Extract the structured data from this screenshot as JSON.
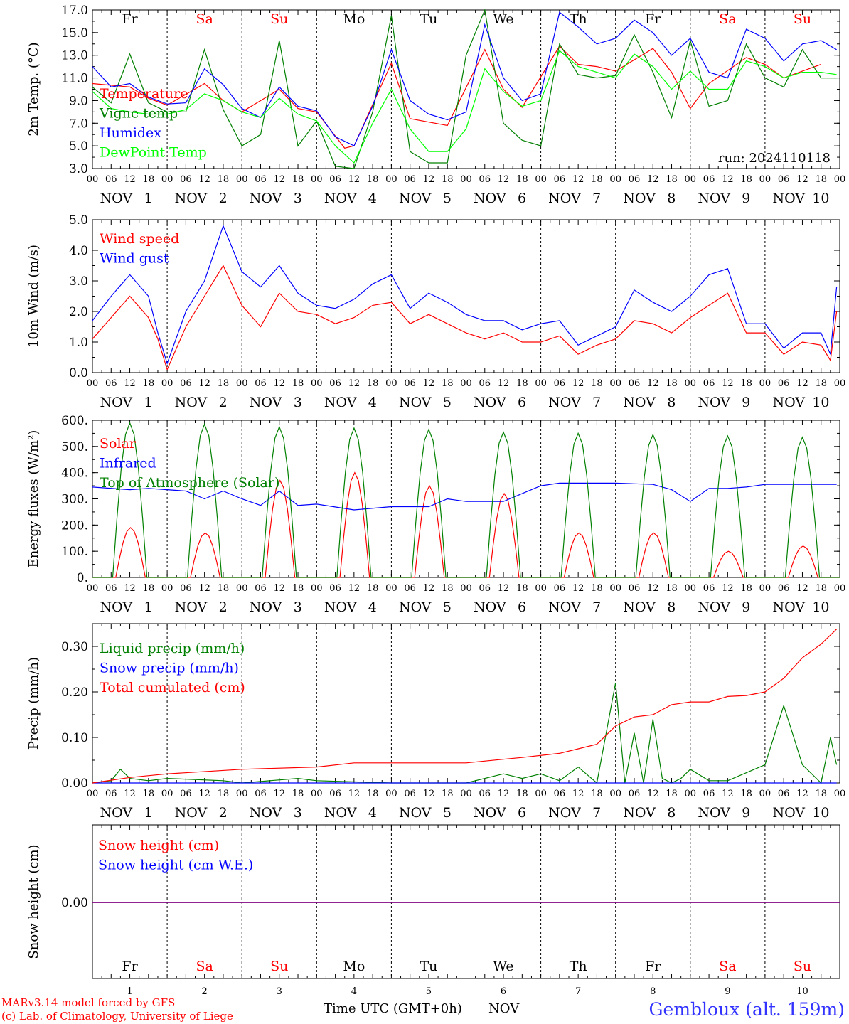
{
  "days": [
    {
      "abbr": "Fr",
      "num": "1",
      "weekend": false
    },
    {
      "abbr": "Sa",
      "num": "2",
      "weekend": true
    },
    {
      "abbr": "Su",
      "num": "3",
      "weekend": true
    },
    {
      "abbr": "Mo",
      "num": "4",
      "weekend": false
    },
    {
      "abbr": "Tu",
      "num": "5",
      "weekend": false
    },
    {
      "abbr": "We",
      "num": "6",
      "weekend": false
    },
    {
      "abbr": "Th",
      "num": "7",
      "weekend": false
    },
    {
      "abbr": "Fr",
      "num": "8",
      "weekend": false
    },
    {
      "abbr": "Sa",
      "num": "9",
      "weekend": true
    },
    {
      "abbr": "Su",
      "num": "10",
      "weekend": true
    }
  ],
  "hour_ticks": [
    "00",
    "06",
    "12",
    "18"
  ],
  "month_label": "NOV",
  "colors": {
    "red": "#ff0000",
    "green": "#008000",
    "blue": "#0000ff",
    "lightgreen": "#00ff00",
    "weekend": "#ff0000",
    "weekday": "#000000",
    "purple": "#800080",
    "station": "#3333ff"
  },
  "chart_data": [
    {
      "id": "temp",
      "type": "line",
      "ylabel": "2m Temp. (°C)",
      "ylim": [
        3,
        17
      ],
      "yticks": [
        "3.0",
        "5.0",
        "7.0",
        "9.0",
        "11.0",
        "13.0",
        "15.0",
        "17.0"
      ],
      "ytick_values": [
        3,
        5,
        7,
        9,
        11,
        13,
        15,
        17
      ],
      "annotation": "run: 2024110118",
      "legend_placement": "upper-left",
      "series": [
        {
          "name": "Temperature",
          "color": "red",
          "x_hours": [
            0,
            12,
            18,
            24,
            36,
            42,
            48,
            60,
            66,
            72,
            81,
            84,
            96,
            102,
            108,
            114,
            126,
            132,
            138,
            150,
            156,
            162,
            168,
            180,
            186,
            192,
            198,
            210,
            216,
            222,
            234
          ],
          "values": [
            10.5,
            10.2,
            9.2,
            8.6,
            10.5,
            9.0,
            8.0,
            10.0,
            8.3,
            8.0,
            4.8,
            5.0,
            12.3,
            7.4,
            7.1,
            6.8,
            13.5,
            10.0,
            8.4,
            13.8,
            12.2,
            12.0,
            11.6,
            13.6,
            11.5,
            8.3,
            10.5,
            12.8,
            12.2,
            11.0,
            12.2
          ]
        },
        {
          "name": "Vigne temp",
          "color": "green",
          "x_hours": [
            0,
            6,
            12,
            18,
            24,
            30,
            36,
            42,
            48,
            54,
            60,
            66,
            72,
            78,
            84,
            90,
            96,
            102,
            108,
            114,
            120,
            126,
            132,
            138,
            144,
            150,
            156,
            162,
            168,
            174,
            180,
            186,
            192,
            198,
            204,
            210,
            216,
            222,
            228,
            234,
            239
          ],
          "values": [
            10.2,
            8.8,
            13.1,
            8.8,
            8.0,
            8.0,
            13.5,
            8.2,
            5.0,
            6.0,
            14.3,
            5.0,
            7.2,
            3.2,
            3.0,
            8.0,
            16.5,
            4.5,
            3.5,
            3.5,
            13.0,
            17.0,
            7.0,
            5.5,
            5.0,
            14.0,
            11.3,
            11.0,
            11.2,
            14.8,
            11.5,
            7.5,
            14.3,
            8.5,
            9.0,
            14.0,
            11.0,
            10.2,
            13.5,
            11.0,
            11.0
          ]
        },
        {
          "name": "Humidex",
          "color": "blue",
          "x_hours": [
            0,
            6,
            12,
            18,
            24,
            30,
            36,
            42,
            48,
            54,
            60,
            66,
            72,
            78,
            84,
            90,
            96,
            102,
            108,
            114,
            120,
            126,
            132,
            138,
            144,
            150,
            156,
            162,
            168,
            174,
            180,
            186,
            192,
            198,
            204,
            210,
            216,
            222,
            228,
            234,
            239
          ],
          "values": [
            12.0,
            10.2,
            10.5,
            9.3,
            8.7,
            8.8,
            11.8,
            10.4,
            8.3,
            7.5,
            10.2,
            8.5,
            8.1,
            5.8,
            5.0,
            8.5,
            13.5,
            9.0,
            7.8,
            7.3,
            8.0,
            15.7,
            11.0,
            9.0,
            9.6,
            16.8,
            15.5,
            14.0,
            14.5,
            16.1,
            15.0,
            13.0,
            14.5,
            11.5,
            11.0,
            15.3,
            14.5,
            12.5,
            14.0,
            14.3,
            13.5
          ]
        },
        {
          "name": "DewPoint Temp",
          "color": "lightgreen",
          "x_hours": [
            0,
            6,
            12,
            18,
            24,
            30,
            36,
            42,
            48,
            54,
            60,
            66,
            72,
            78,
            84,
            90,
            96,
            102,
            108,
            114,
            120,
            126,
            132,
            138,
            144,
            150,
            156,
            162,
            168,
            174,
            180,
            186,
            192,
            198,
            204,
            210,
            216,
            222,
            228,
            234,
            239
          ],
          "values": [
            9.8,
            8.3,
            8.0,
            7.8,
            7.8,
            8.2,
            9.6,
            9.0,
            8.0,
            7.5,
            9.2,
            7.8,
            7.2,
            5.0,
            3.5,
            7.0,
            10.0,
            6.5,
            4.5,
            4.5,
            6.5,
            11.8,
            9.8,
            8.5,
            9.0,
            13.4,
            12.0,
            11.5,
            11.0,
            13.1,
            12.0,
            10.0,
            11.6,
            10.0,
            10.0,
            12.5,
            12.0,
            11.0,
            11.5,
            11.5,
            11.3
          ]
        }
      ]
    },
    {
      "id": "wind",
      "type": "line",
      "ylabel": "10m Wind (m/s)",
      "ylim": [
        0,
        5
      ],
      "yticks": [
        "0.0",
        "1.0",
        "2.0",
        "3.0",
        "4.0",
        "5.0"
      ],
      "ytick_values": [
        0,
        1,
        2,
        3,
        4,
        5
      ],
      "legend_placement": "upper-left",
      "series": [
        {
          "name": "Wind speed",
          "color": "red",
          "x_hours": [
            0,
            6,
            12,
            18,
            21,
            24,
            30,
            36,
            42,
            48,
            54,
            60,
            66,
            72,
            78,
            84,
            90,
            96,
            102,
            108,
            114,
            120,
            126,
            132,
            138,
            144,
            150,
            156,
            162,
            168,
            174,
            180,
            186,
            192,
            198,
            204,
            210,
            216,
            222,
            228,
            234,
            237,
            239
          ],
          "values": [
            1.1,
            1.8,
            2.5,
            1.8,
            1.1,
            0.1,
            1.5,
            2.5,
            3.5,
            2.2,
            1.5,
            2.6,
            2.0,
            1.9,
            1.6,
            1.8,
            2.2,
            2.3,
            1.6,
            1.9,
            1.6,
            1.3,
            1.1,
            1.3,
            1.0,
            1.0,
            1.2,
            0.6,
            0.9,
            1.1,
            1.7,
            1.6,
            1.3,
            1.8,
            2.2,
            2.6,
            1.3,
            1.3,
            0.6,
            1.0,
            0.9,
            0.4,
            2.0
          ]
        },
        {
          "name": "Wind gust",
          "color": "blue",
          "x_hours": [
            0,
            6,
            12,
            18,
            21,
            24,
            30,
            36,
            42,
            48,
            54,
            60,
            66,
            72,
            78,
            84,
            90,
            96,
            102,
            108,
            114,
            120,
            126,
            132,
            138,
            144,
            150,
            156,
            162,
            168,
            174,
            180,
            186,
            192,
            198,
            204,
            210,
            216,
            222,
            228,
            234,
            237,
            239
          ],
          "values": [
            1.7,
            2.5,
            3.2,
            2.5,
            1.3,
            0.3,
            2.0,
            3.0,
            4.8,
            3.3,
            2.8,
            3.5,
            2.6,
            2.2,
            2.1,
            2.4,
            2.9,
            3.2,
            2.1,
            2.6,
            2.3,
            1.9,
            1.7,
            1.7,
            1.4,
            1.6,
            1.7,
            0.9,
            1.2,
            1.5,
            2.7,
            2.3,
            2.0,
            2.5,
            3.2,
            3.4,
            1.6,
            1.6,
            0.8,
            1.3,
            1.3,
            0.6,
            2.8
          ]
        }
      ]
    },
    {
      "id": "energy",
      "type": "line",
      "ylabel": "Energy fluxes (W/m²)",
      "ylim": [
        0,
        600
      ],
      "yticks": [
        "0.",
        "100.",
        "200.",
        "300.",
        "400.",
        "500.",
        "600."
      ],
      "ytick_values": [
        0,
        100,
        200,
        300,
        400,
        500,
        600
      ],
      "legend_placement": "upper-left",
      "series": [
        {
          "name": "Solar",
          "color": "red",
          "peaks": [
            190,
            170,
            370,
            400,
            350,
            320,
            170,
            170,
            100,
            120
          ]
        },
        {
          "name": "Infrared",
          "color": "blue",
          "x_hours": [
            0,
            12,
            18,
            24,
            30,
            36,
            42,
            48,
            54,
            60,
            66,
            72,
            84,
            96,
            108,
            114,
            120,
            132,
            138,
            144,
            150,
            156,
            168,
            180,
            186,
            192,
            198,
            204,
            210,
            216,
            222,
            228,
            234,
            239
          ],
          "values": [
            345,
            335,
            340,
            335,
            330,
            300,
            330,
            300,
            275,
            330,
            275,
            280,
            258,
            270,
            270,
            300,
            290,
            290,
            320,
            350,
            360,
            360,
            360,
            355,
            335,
            290,
            340,
            340,
            345,
            355,
            355,
            355,
            355,
            355
          ]
        },
        {
          "name": "Top of Atmosphere (Solar)",
          "color": "green",
          "peaks": [
            590,
            585,
            575,
            570,
            565,
            555,
            550,
            545,
            540,
            535
          ]
        }
      ]
    },
    {
      "id": "precip",
      "type": "line",
      "ylabel": "Precip (mm/h)",
      "ylim": [
        0,
        0.35
      ],
      "yticks": [
        "0.00",
        "0.10",
        "0.20",
        "0.30"
      ],
      "ytick_values": [
        0,
        0.1,
        0.2,
        0.3
      ],
      "legend_placement": "upper-left",
      "series": [
        {
          "name": "Liquid precip (mm/h)",
          "color": "green",
          "x_hours": [
            0,
            6,
            9,
            12,
            18,
            24,
            42,
            48,
            66,
            72,
            96,
            120,
            132,
            138,
            144,
            150,
            156,
            162,
            168,
            171,
            174,
            177,
            180,
            183,
            186,
            189,
            192,
            198,
            204,
            216,
            222,
            228,
            231,
            234,
            237,
            239
          ],
          "values": [
            0,
            0.005,
            0.03,
            0.01,
            0.005,
            0.01,
            0.005,
            0,
            0.01,
            0.005,
            0,
            0,
            0.02,
            0.01,
            0.02,
            0.005,
            0.035,
            0,
            0.22,
            0,
            0.11,
            0,
            0.14,
            0.01,
            0,
            0.01,
            0.03,
            0.005,
            0.005,
            0.04,
            0.17,
            0.04,
            0.02,
            0,
            0.1,
            0.04
          ]
        },
        {
          "name": "Snow precip (mm/h)",
          "color": "blue",
          "x_hours": [
            0,
            239
          ],
          "values": [
            0,
            0
          ]
        },
        {
          "name": "Total cumulated (cm)",
          "color": "red",
          "x_hours": [
            0,
            12,
            24,
            48,
            72,
            84,
            120,
            132,
            138,
            150,
            156,
            162,
            168,
            174,
            180,
            186,
            192,
            198,
            204,
            210,
            216,
            222,
            228,
            234,
            239
          ],
          "values": [
            0,
            0.012,
            0.02,
            0.03,
            0.035,
            0.044,
            0.044,
            0.052,
            0.056,
            0.065,
            0.075,
            0.085,
            0.125,
            0.145,
            0.15,
            0.172,
            0.178,
            0.178,
            0.19,
            0.192,
            0.2,
            0.23,
            0.275,
            0.305,
            0.338
          ]
        }
      ]
    },
    {
      "id": "snow",
      "type": "line",
      "ylabel": "Snow height (cm)",
      "yticks": [
        "0.00"
      ],
      "ytick_values": [
        0
      ],
      "legend_placement": "upper-left",
      "series": [
        {
          "name": "Snow height (cm)",
          "color": "red",
          "x_hours": [
            0,
            240
          ],
          "values": [
            0,
            0
          ]
        },
        {
          "name": "Snow height (cm W.E.)",
          "color": "blue",
          "x_hours": [
            0,
            240
          ],
          "values": [
            0,
            0
          ]
        }
      ]
    }
  ],
  "footer": {
    "xlabel": "Time UTC (GMT+0h)",
    "month": "NOV",
    "credit_line1": "MARv3.14 model forced by GFS",
    "credit_line2": "(c) Lab. of Climatology, University of Liege",
    "station": "Gembloux (alt. 159m)"
  }
}
